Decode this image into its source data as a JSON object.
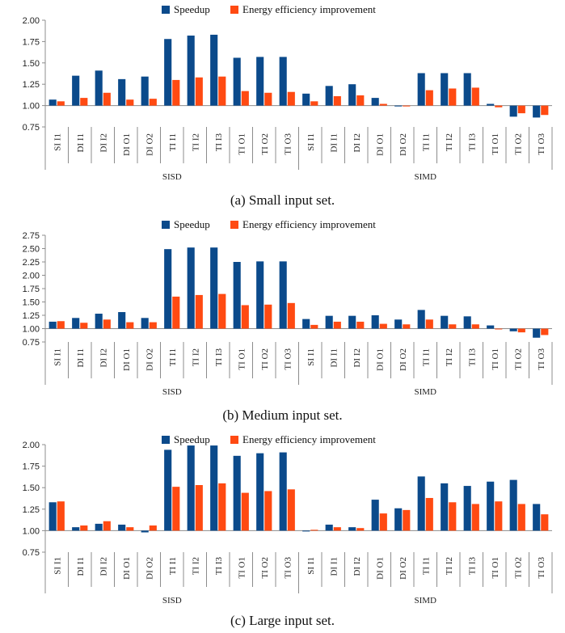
{
  "colors": {
    "speedup": "#0b4a8b",
    "energy": "#ff4a12",
    "axis": "#8c8c8c",
    "grid": "#c6c6c6"
  },
  "legend": {
    "speedup": "Speedup",
    "energy": "Energy efficiency improvement"
  },
  "captions": [
    "(a) Small input set.",
    "(b) Medium input set.",
    "(c) Large input set."
  ],
  "chart_data": [
    {
      "type": "bar",
      "title": "(a) Small input set.",
      "legend_position": "top-center",
      "ylim": [
        0.75,
        2.0
      ],
      "yticks": [
        "0.75",
        "1.00",
        "1.25",
        "1.50",
        "1.75",
        "2.00"
      ],
      "grid": false,
      "categories": [
        "SI I1",
        "DI I1",
        "DI I2",
        "DI O1",
        "DI O2",
        "TI I1",
        "TI I2",
        "TI I3",
        "TI O1",
        "TI O2",
        "TI O3",
        "SI I1",
        "DI I1",
        "DI I2",
        "DI O1",
        "DI O2",
        "TI I1",
        "TI I2",
        "TI I3",
        "TI O1",
        "TI O2",
        "TI O3"
      ],
      "groups": [
        {
          "label": "SISD",
          "count": 11
        },
        {
          "label": "SIMD",
          "count": 11
        }
      ],
      "series": [
        {
          "name": "Speedup",
          "values": [
            1.07,
            1.35,
            1.41,
            1.31,
            1.34,
            1.78,
            1.82,
            1.83,
            1.56,
            1.57,
            1.57,
            1.14,
            1.23,
            1.25,
            1.09,
            0.99,
            1.38,
            1.38,
            1.38,
            1.02,
            0.87,
            0.86
          ]
        },
        {
          "name": "Energy efficiency improvement",
          "values": [
            1.05,
            1.09,
            1.15,
            1.07,
            1.08,
            1.3,
            1.33,
            1.34,
            1.17,
            1.15,
            1.16,
            1.05,
            1.11,
            1.12,
            1.02,
            0.99,
            1.18,
            1.2,
            1.21,
            0.98,
            0.91,
            0.89
          ]
        }
      ]
    },
    {
      "type": "bar",
      "title": "(b) Medium input set.",
      "legend_position": "top-center",
      "ylim": [
        0.75,
        2.75
      ],
      "yticks": [
        "0.75",
        "1.00",
        "1.25",
        "1.50",
        "1.75",
        "2.00",
        "2.25",
        "2.50",
        "2.75"
      ],
      "grid": false,
      "categories": [
        "SI I1",
        "DI I1",
        "DI I2",
        "DI O1",
        "DI O2",
        "TI I1",
        "TI I2",
        "TI I3",
        "TI O1",
        "TI O2",
        "TI O3",
        "SI I1",
        "DI I1",
        "DI I2",
        "DI O1",
        "DI O2",
        "TI I1",
        "TI I2",
        "TI I3",
        "TI O1",
        "TI O2",
        "TI O3"
      ],
      "groups": [
        {
          "label": "SISD",
          "count": 11
        },
        {
          "label": "SIMD",
          "count": 11
        }
      ],
      "series": [
        {
          "name": "Speedup",
          "values": [
            1.13,
            1.2,
            1.28,
            1.31,
            1.2,
            2.49,
            2.52,
            2.52,
            2.25,
            2.26,
            2.26,
            1.18,
            1.24,
            1.24,
            1.25,
            1.17,
            1.35,
            1.24,
            1.23,
            1.06,
            0.95,
            0.83
          ]
        },
        {
          "name": "Energy efficiency improvement",
          "values": [
            1.14,
            1.11,
            1.17,
            1.12,
            1.12,
            1.6,
            1.63,
            1.65,
            1.44,
            1.45,
            1.48,
            1.07,
            1.13,
            1.13,
            1.09,
            1.08,
            1.17,
            1.08,
            1.08,
            1.0,
            0.93,
            0.88
          ]
        }
      ]
    },
    {
      "type": "bar",
      "title": "(c) Large input set.",
      "legend_position": "top-center",
      "ylim": [
        0.75,
        2.0
      ],
      "yticks": [
        "0.75",
        "1.00",
        "1.25",
        "1.50",
        "1.75",
        "2.00"
      ],
      "grid": false,
      "categories": [
        "SI I1",
        "DI I1",
        "DI I2",
        "DI O1",
        "DI O2",
        "TI I1",
        "TI I2",
        "TI I3",
        "TI O1",
        "TI O2",
        "TI O3",
        "SI I1",
        "DI I1",
        "DI I2",
        "DI O1",
        "DI O2",
        "TI I1",
        "TI I2",
        "TI I3",
        "TI O1",
        "TI O2",
        "TI O3"
      ],
      "groups": [
        {
          "label": "SISD",
          "count": 11
        },
        {
          "label": "SIMD",
          "count": 11
        }
      ],
      "series": [
        {
          "name": "Speedup",
          "values": [
            1.33,
            1.04,
            1.08,
            1.07,
            0.98,
            1.94,
            1.99,
            1.99,
            1.87,
            1.9,
            1.91,
            1.0,
            1.07,
            1.04,
            1.36,
            1.26,
            1.63,
            1.55,
            1.52,
            1.57,
            1.59,
            1.31
          ]
        },
        {
          "name": "Energy efficiency improvement",
          "values": [
            1.34,
            1.06,
            1.11,
            1.04,
            1.06,
            1.51,
            1.53,
            1.55,
            1.44,
            1.46,
            1.48,
            1.01,
            1.04,
            1.03,
            1.2,
            1.24,
            1.38,
            1.33,
            1.31,
            1.34,
            1.31,
            1.19
          ]
        }
      ]
    }
  ]
}
